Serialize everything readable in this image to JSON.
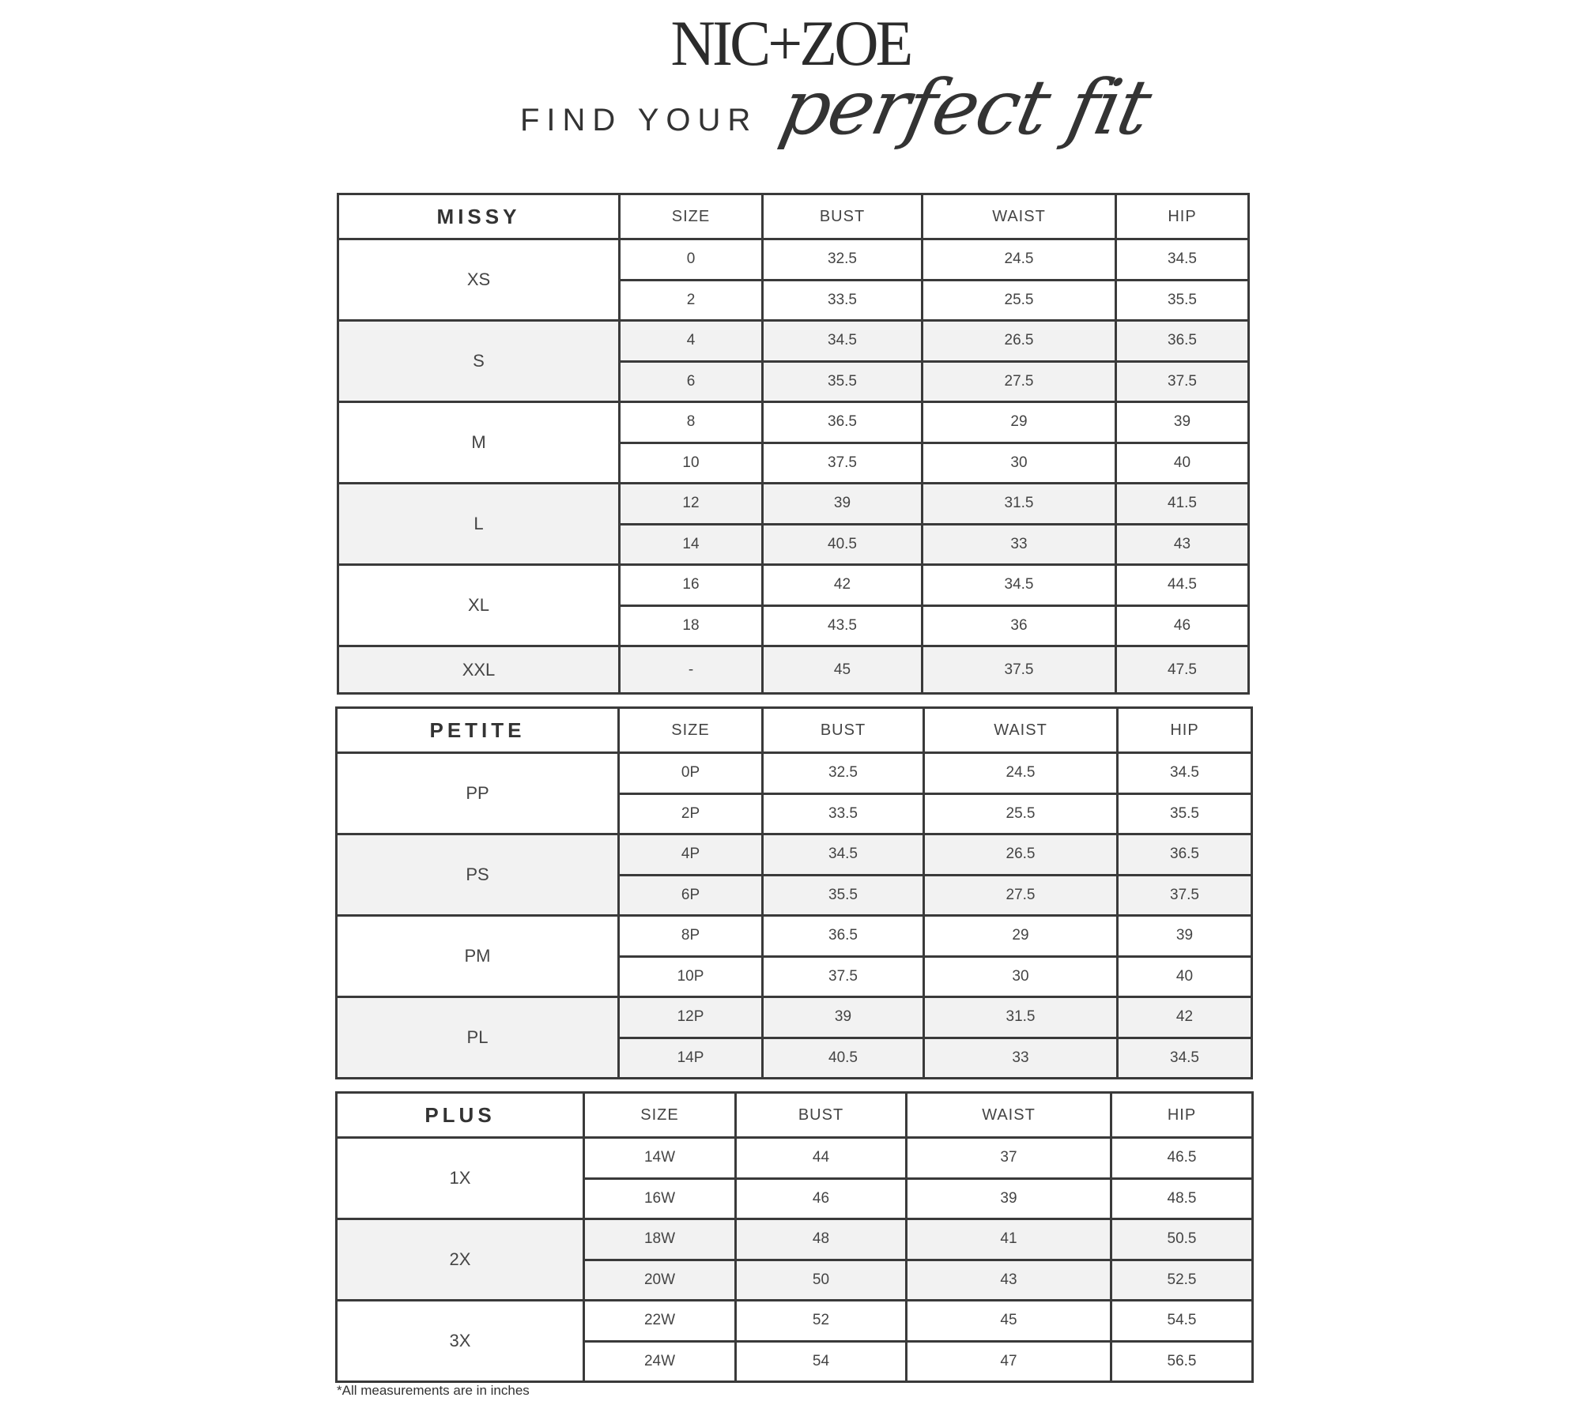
{
  "brand": {
    "logo": "NIC+ZOE",
    "tagline": "FIND YOUR",
    "tagline_script": "perfect fit"
  },
  "tables": [
    {
      "title": "MISSY",
      "headers": [
        "SIZE",
        "BUST",
        "WAIST",
        "HIP"
      ],
      "groups": [
        {
          "label": "XS",
          "rows": [
            [
              "0",
              "32.5",
              "24.5",
              "34.5"
            ],
            [
              "2",
              "33.5",
              "25.5",
              "35.5"
            ]
          ]
        },
        {
          "label": "S",
          "rows": [
            [
              "4",
              "34.5",
              "26.5",
              "36.5"
            ],
            [
              "6",
              "35.5",
              "27.5",
              "37.5"
            ]
          ]
        },
        {
          "label": "M",
          "rows": [
            [
              "8",
              "36.5",
              "29",
              "39"
            ],
            [
              "10",
              "37.5",
              "30",
              "40"
            ]
          ]
        },
        {
          "label": "L",
          "rows": [
            [
              "12",
              "39",
              "31.5",
              "41.5"
            ],
            [
              "14",
              "40.5",
              "33",
              "43"
            ]
          ]
        },
        {
          "label": "XL",
          "rows": [
            [
              "16",
              "42",
              "34.5",
              "44.5"
            ],
            [
              "18",
              "43.5",
              "36",
              "46"
            ]
          ]
        },
        {
          "label": "XXL",
          "rows": [
            [
              "-",
              "45",
              "37.5",
              "47.5"
            ]
          ]
        }
      ]
    },
    {
      "title": "PETITE",
      "headers": [
        "SIZE",
        "BUST",
        "WAIST",
        "HIP"
      ],
      "groups": [
        {
          "label": "PP",
          "rows": [
            [
              "0P",
              "32.5",
              "24.5",
              "34.5"
            ],
            [
              "2P",
              "33.5",
              "25.5",
              "35.5"
            ]
          ]
        },
        {
          "label": "PS",
          "rows": [
            [
              "4P",
              "34.5",
              "26.5",
              "36.5"
            ],
            [
              "6P",
              "35.5",
              "27.5",
              "37.5"
            ]
          ]
        },
        {
          "label": "PM",
          "rows": [
            [
              "8P",
              "36.5",
              "29",
              "39"
            ],
            [
              "10P",
              "37.5",
              "30",
              "40"
            ]
          ]
        },
        {
          "label": "PL",
          "rows": [
            [
              "12P",
              "39",
              "31.5",
              "42"
            ],
            [
              "14P",
              "40.5",
              "33",
              "34.5"
            ]
          ]
        }
      ]
    },
    {
      "title": "PLUS",
      "headers": [
        "SIZE",
        "BUST",
        "WAIST",
        "HIP"
      ],
      "groups": [
        {
          "label": "1X",
          "rows": [
            [
              "14W",
              "44",
              "37",
              "46.5"
            ],
            [
              "16W",
              "46",
              "39",
              "48.5"
            ]
          ]
        },
        {
          "label": "2X",
          "rows": [
            [
              "18W",
              "48",
              "41",
              "50.5"
            ],
            [
              "20W",
              "50",
              "43",
              "52.5"
            ]
          ]
        },
        {
          "label": "3X",
          "rows": [
            [
              "22W",
              "52",
              "45",
              "54.5"
            ],
            [
              "24W",
              "54",
              "47",
              "56.5"
            ]
          ]
        }
      ]
    }
  ],
  "footnote": "*All measurements are in inches",
  "colors": {
    "border": "#3a3a3a",
    "shade": "#f2f2f2"
  }
}
